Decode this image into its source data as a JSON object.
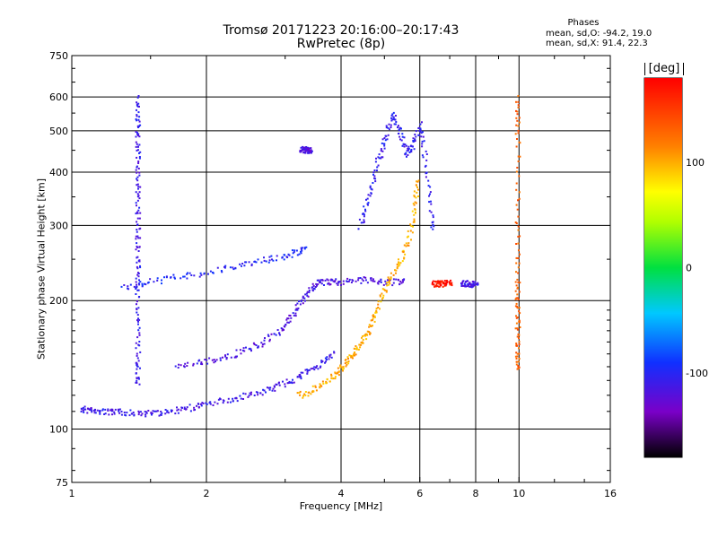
{
  "title": "Tromsø 20171223 20:16:00–20:17:43",
  "subtitle": "RwPretec (8p)",
  "phases": {
    "heading": "Phases",
    "o_line": "mean, sd,O: -94.2, 19.0",
    "x_line": "mean, sd,X:  91.4, 22.3"
  },
  "colorbar": {
    "unit": "[deg]",
    "ticks": [
      "100",
      "0",
      "-100"
    ],
    "range": [
      -180,
      180
    ]
  },
  "chart_data": {
    "type": "scatter",
    "xlabel": "Frequency [MHz]",
    "ylabel": "Stationary phase Virtual Height [km]",
    "xscale": "log",
    "yscale": "log",
    "xlim": [
      1,
      16
    ],
    "ylim": [
      75,
      750
    ],
    "x_ticks": [
      "1",
      "2",
      "4",
      "6",
      "8",
      "10",
      "16"
    ],
    "y_ticks": [
      "75",
      "100",
      "200",
      "300",
      "400",
      "500",
      "600",
      "750"
    ],
    "grid": true,
    "phase_range_deg": [
      -180,
      180
    ],
    "traces": [
      {
        "label": "lower O trace",
        "phase": -110,
        "points": [
          [
            1.05,
            112
          ],
          [
            1.1,
            111
          ],
          [
            1.2,
            110
          ],
          [
            1.3,
            110
          ],
          [
            1.45,
            109
          ],
          [
            1.6,
            110
          ],
          [
            1.8,
            112
          ],
          [
            2.0,
            115
          ],
          [
            2.3,
            118
          ],
          [
            2.6,
            122
          ],
          [
            2.9,
            127
          ],
          [
            3.2,
            133
          ],
          [
            3.5,
            140
          ],
          [
            3.8,
            150
          ]
        ]
      },
      {
        "label": "upper O trace",
        "phase": -115,
        "points": [
          [
            1.7,
            140
          ],
          [
            2.0,
            145
          ],
          [
            2.3,
            150
          ],
          [
            2.6,
            158
          ],
          [
            2.9,
            170
          ],
          [
            3.1,
            185
          ],
          [
            3.3,
            205
          ],
          [
            3.5,
            220
          ],
          [
            3.7,
            222
          ],
          [
            4.0,
            222
          ],
          [
            4.5,
            225
          ],
          [
            5.0,
            222
          ],
          [
            5.5,
            222
          ]
        ]
      },
      {
        "label": "X trace",
        "phase": 100,
        "points": [
          [
            3.2,
            120
          ],
          [
            3.5,
            125
          ],
          [
            3.8,
            132
          ],
          [
            4.0,
            140
          ],
          [
            4.2,
            148
          ],
          [
            4.4,
            158
          ],
          [
            4.6,
            170
          ],
          [
            4.8,
            190
          ],
          [
            5.0,
            215
          ],
          [
            5.3,
            240
          ],
          [
            5.6,
            270
          ],
          [
            5.8,
            320
          ],
          [
            5.9,
            380
          ]
        ]
      },
      {
        "label": "F-layer column",
        "phase": -105,
        "points": [
          [
            4.4,
            300
          ],
          [
            4.6,
            350
          ],
          [
            4.8,
            420
          ],
          [
            5.0,
            480
          ],
          [
            5.2,
            550
          ],
          [
            5.4,
            500
          ],
          [
            5.6,
            440
          ],
          [
            5.8,
            470
          ],
          [
            6.0,
            520
          ],
          [
            6.2,
            400
          ],
          [
            6.4,
            300
          ]
        ]
      },
      {
        "label": "spread echoes at 1.4 MHz",
        "phase": -110,
        "points": [
          [
            1.4,
            600
          ],
          [
            1.4,
            520
          ],
          [
            1.4,
            450
          ],
          [
            1.4,
            380
          ],
          [
            1.4,
            320
          ],
          [
            1.4,
            270
          ],
          [
            1.4,
            230
          ],
          [
            1.4,
            190
          ],
          [
            1.4,
            150
          ],
          [
            1.4,
            130
          ]
        ]
      },
      {
        "label": "oblique echoes near 250 km",
        "phase": -100,
        "points": [
          [
            1.3,
            215
          ],
          [
            1.5,
            222
          ],
          [
            1.8,
            230
          ],
          [
            2.2,
            238
          ],
          [
            2.6,
            248
          ],
          [
            3.0,
            255
          ],
          [
            3.3,
            265
          ]
        ]
      },
      {
        "label": "cluster at 3.3 MHz",
        "phase": -120,
        "points": [
          [
            3.25,
            450
          ],
          [
            3.3,
            455
          ],
          [
            3.35,
            452
          ],
          [
            3.4,
            448
          ]
        ]
      },
      {
        "label": "red echoes near 6.5 MHz",
        "phase": 170,
        "points": [
          [
            6.4,
            220
          ],
          [
            6.6,
            220
          ],
          [
            6.8,
            220
          ],
          [
            7.0,
            221
          ]
        ]
      },
      {
        "label": "blue echoes near 7.7 MHz",
        "phase": -110,
        "points": [
          [
            7.4,
            220
          ],
          [
            7.6,
            220
          ],
          [
            7.8,
            220
          ],
          [
            8.0,
            219
          ]
        ]
      },
      {
        "label": "echoes at 9.9 MHz",
        "phase": 130,
        "points": [
          [
            9.9,
            600
          ],
          [
            9.9,
            480
          ],
          [
            9.9,
            300
          ],
          [
            9.9,
            220
          ],
          [
            9.9,
            190
          ],
          [
            9.9,
            160
          ],
          [
            9.9,
            140
          ]
        ]
      }
    ]
  }
}
